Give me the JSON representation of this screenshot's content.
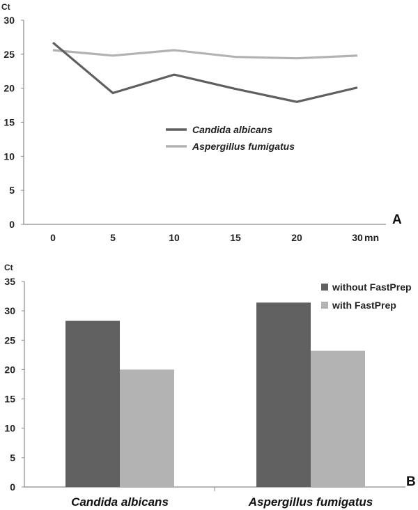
{
  "chart_data": [
    {
      "type": "line",
      "panel_label": "A",
      "ylabel": "Ct",
      "x_unit": "mn",
      "x": [
        0,
        5,
        10,
        15,
        20,
        30
      ],
      "x_tick_labels": [
        "0",
        "5",
        "10",
        "15",
        "20",
        "30"
      ],
      "ylim": [
        0,
        30
      ],
      "y_ticks": [
        0,
        5,
        10,
        15,
        20,
        25,
        30
      ],
      "grid": false,
      "legend": "center-right",
      "series": [
        {
          "name": "Candida albicans",
          "color": "#5f5f5f",
          "values": [
            26.7,
            19.3,
            22.0,
            19.9,
            18.0,
            20.1
          ]
        },
        {
          "name": "Aspergillus fumigatus",
          "color": "#b2b2b2",
          "values": [
            25.6,
            24.8,
            25.6,
            24.6,
            24.4,
            24.8
          ]
        }
      ]
    },
    {
      "type": "bar",
      "panel_label": "B",
      "ylabel": "Ct",
      "categories": [
        "Candida albicans",
        "Aspergillus fumigatus"
      ],
      "ylim": [
        0,
        35
      ],
      "y_ticks": [
        0,
        5,
        10,
        15,
        20,
        25,
        30,
        35
      ],
      "grid": false,
      "legend": "top-right",
      "series": [
        {
          "name": "without FastPrep",
          "color": "#606060",
          "values": [
            28.3,
            31.4
          ]
        },
        {
          "name": "with FastPrep",
          "color": "#b3b3b3",
          "values": [
            20.0,
            23.2
          ]
        }
      ]
    }
  ]
}
